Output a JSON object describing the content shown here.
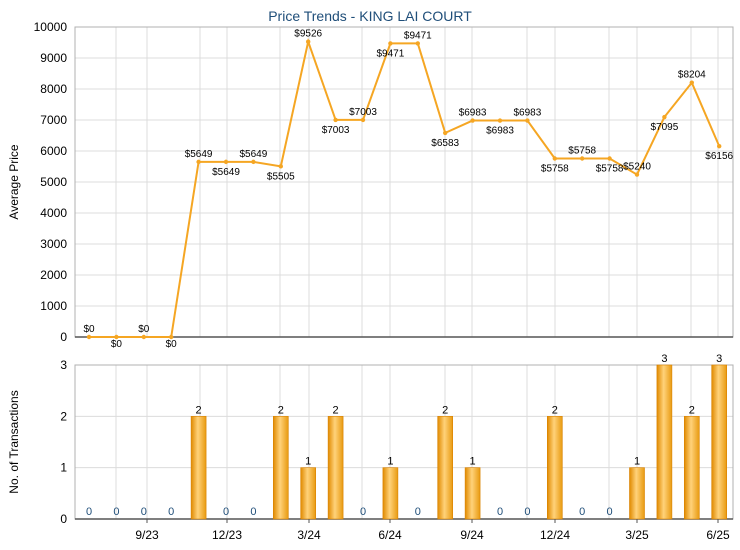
{
  "chart_data": [
    {
      "type": "line",
      "title": "Price Trends - KING LAI COURT",
      "ylabel": "Average Price",
      "xlabel": "",
      "ylim": [
        0,
        10000
      ],
      "yticks": [
        0,
        1000,
        2000,
        3000,
        4000,
        5000,
        6000,
        7000,
        8000,
        9000,
        10000
      ],
      "grid": true,
      "color": "#f5a623",
      "series": [
        {
          "values": [
            0,
            0,
            0,
            0,
            5649,
            5649,
            5649,
            5505,
            9526,
            7003,
            7003,
            9471,
            9471,
            6583,
            6983,
            6983,
            6983,
            5758,
            5758,
            5758,
            5240,
            7095,
            8204,
            6156
          ],
          "labels": [
            "$0",
            "$0",
            "$0",
            "$0",
            "$5649",
            "$5649",
            "$5649",
            "$5505",
            "$9526",
            "$7003",
            "$7003",
            "$9471",
            "$9471",
            "$6583",
            "$6983",
            "$6983",
            "$6983",
            "$5758",
            "$5758",
            "$5758",
            "$5240",
            "$7095",
            "$8204",
            "$6156"
          ]
        }
      ]
    },
    {
      "type": "bar",
      "ylabel": "No. of Transactions",
      "xlabel": "",
      "ylim": [
        0,
        3
      ],
      "yticks": [
        0,
        1,
        2,
        3
      ],
      "grid": true,
      "color": "#f5a623",
      "values": [
        0,
        0,
        0,
        0,
        2,
        0,
        0,
        2,
        1,
        2,
        0,
        1,
        0,
        2,
        1,
        0,
        0,
        2,
        0,
        0,
        1,
        3,
        2,
        3
      ],
      "xtick_labels": [
        "9/23",
        "12/23",
        "3/24",
        "6/24",
        "9/24",
        "12/24",
        "3/25",
        "6/25"
      ]
    }
  ]
}
